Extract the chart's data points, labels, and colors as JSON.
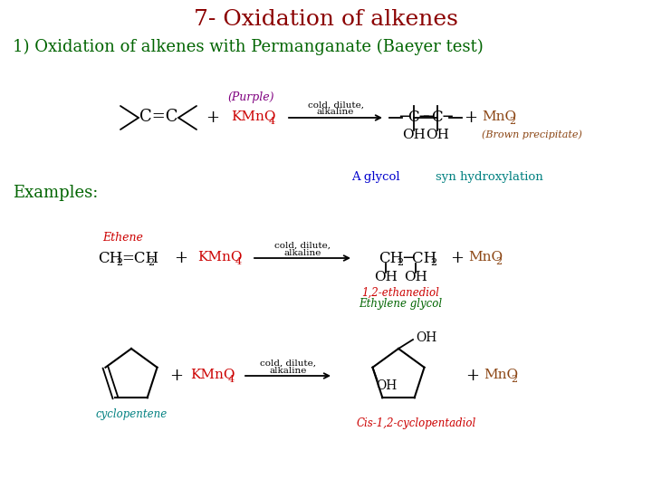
{
  "title": "7- Oxidation of alkenes",
  "title_color": "#8B0000",
  "title_fontsize": 18,
  "subtitle": "1) Oxidation of alkenes with Permanganate (Baeyer test)",
  "subtitle_color": "#006400",
  "subtitle_fontsize": 13,
  "examples_label": "Examples:",
  "examples_color": "#006400",
  "examples_fontsize": 13,
  "bg_color": "#ffffff",
  "text_black": "#000000",
  "text_purple": "#800080",
  "text_brown": "#8B4513",
  "text_red": "#CC0000",
  "text_green": "#006400",
  "text_blue": "#0000CD",
  "text_teal": "#008080",
  "kmno4_color": "#CC0000",
  "mno2_color": "#8B4513"
}
